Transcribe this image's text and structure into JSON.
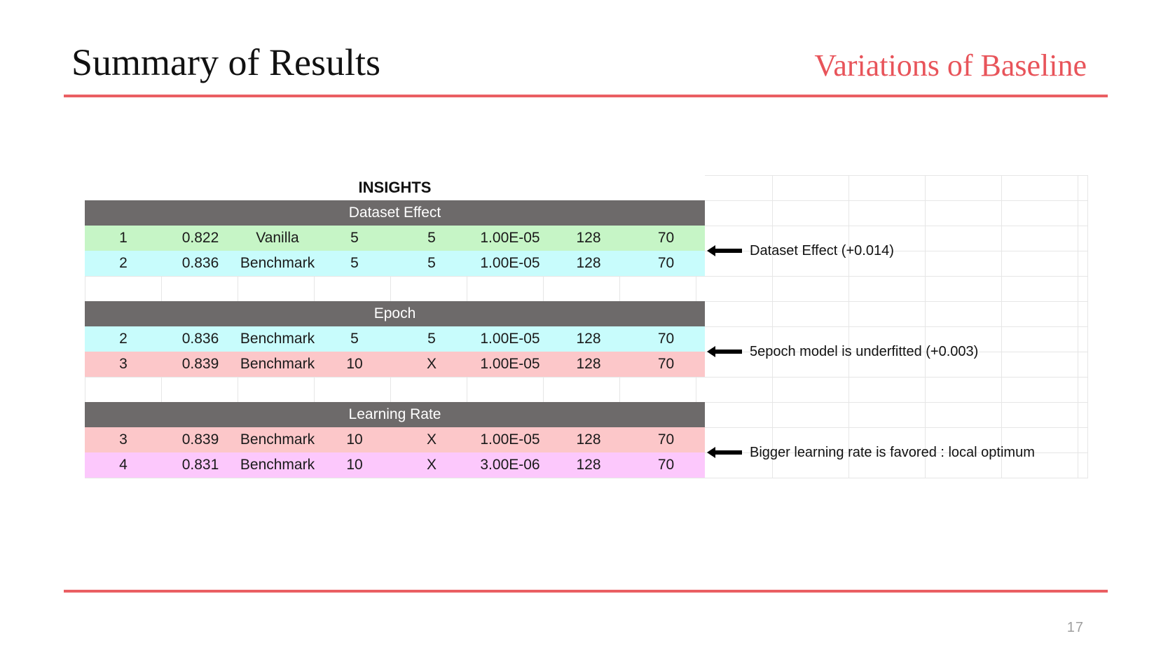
{
  "slide": {
    "title": "Summary of Results",
    "subtitle": "Variations of Baseline",
    "page_number": "17"
  },
  "colors": {
    "accent": "#ea5f63",
    "header_gray": "#6d6a6a",
    "row_green": "#c6f5c6",
    "row_cyan": "#c8fcfc",
    "row_pink": "#fcc7c9",
    "row_magenta": "#fcc8fc"
  },
  "table": {
    "title": "INSIGHTS",
    "sections": [
      {
        "header": "Dataset Effect",
        "rows": [
          [
            "1",
            "0.822",
            "Vanilla",
            "5",
            "5",
            "1.00E-05",
            "128",
            "70"
          ],
          [
            "2",
            "0.836",
            "Benchmark",
            "5",
            "5",
            "1.00E-05",
            "128",
            "70"
          ]
        ],
        "annotation": "Dataset Effect (+0.014)"
      },
      {
        "header": "Epoch",
        "rows": [
          [
            "2",
            "0.836",
            "Benchmark",
            "5",
            "5",
            "1.00E-05",
            "128",
            "70"
          ],
          [
            "3",
            "0.839",
            "Benchmark",
            "10",
            "X",
            "1.00E-05",
            "128",
            "70"
          ]
        ],
        "annotation": "5epoch model is underfitted (+0.003)"
      },
      {
        "header": "Learning Rate",
        "rows": [
          [
            "3",
            "0.839",
            "Benchmark",
            "10",
            "X",
            "1.00E-05",
            "128",
            "70"
          ],
          [
            "4",
            "0.831",
            "Benchmark",
            "10",
            "X",
            "3.00E-06",
            "128",
            "70"
          ]
        ],
        "annotation": "Bigger learning rate is favored : local optimum"
      }
    ]
  },
  "icons": {
    "annotation_arrow": "left-arrow-icon"
  }
}
